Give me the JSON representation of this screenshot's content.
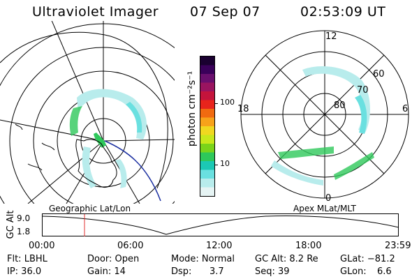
{
  "header": {
    "title": "Ultraviolet Imager",
    "date": "07 Sep 07",
    "time": "02:53:09 UT"
  },
  "left_map": {
    "label": "Geographic Lat/Lon"
  },
  "right_map": {
    "label": "Apex  MLat/MLT",
    "mlt_labels": {
      "top": "12",
      "bottom": "0",
      "left": "18",
      "right": "6"
    },
    "lat_labels": [
      "60",
      "70",
      "80"
    ]
  },
  "colorbar": {
    "unit_label": "photon cm⁻²s⁻¹",
    "tick_100": "100",
    "tick_10": "10",
    "colors": [
      "#1a0030",
      "#3a005a",
      "#6a0f6e",
      "#9a1460",
      "#c4143c",
      "#e8241c",
      "#f06a10",
      "#f7a21a",
      "#f0d820",
      "#c8e81c",
      "#7ad41a",
      "#2ec85a",
      "#1cc8b4",
      "#6ae0e0",
      "#b8ecec",
      "#e6f4f4"
    ]
  },
  "timeline": {
    "ylabel": "GC Alt",
    "y_top": "9.0",
    "y_bottom": "1.8",
    "xticks": [
      "00:00",
      "06:00",
      "12:00",
      "18:00",
      "23:59"
    ],
    "marker_time": "02:53"
  },
  "info": {
    "flt": "Flt: LBHL",
    "ip": "IP: 36.0",
    "door": "Door: Open",
    "gain": "Gain: 14",
    "mode": "Mode: Normal",
    "dsp_label": "Dsp:",
    "dsp_value": "3.7",
    "gc_alt": "GC Alt: 8.2 Re",
    "seq": "Seq: 39",
    "glat": "GLat: −81.2",
    "glon_label": "GLon:",
    "glon_value": "6.6"
  }
}
